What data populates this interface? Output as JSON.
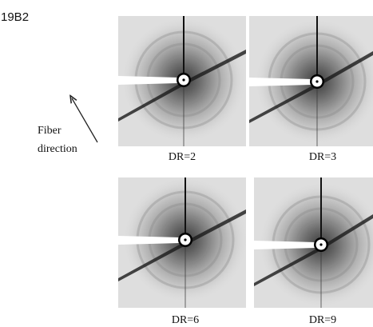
{
  "figure_label": "19B2",
  "annotation": {
    "lines": [
      "Fiber",
      "direction"
    ]
  },
  "panels": [
    {
      "label": "DR=2"
    },
    {
      "label": "DR=3"
    },
    {
      "label": "DR=6"
    },
    {
      "label": "DR=9"
    }
  ]
}
